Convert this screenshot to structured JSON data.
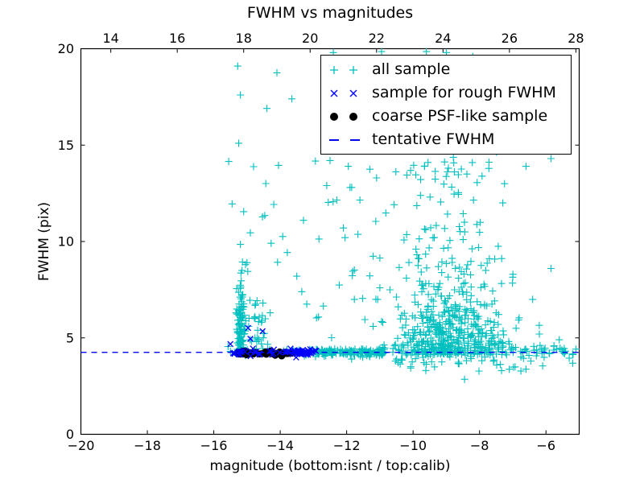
{
  "chart_data": {
    "type": "scatter",
    "title": "FWHM vs magnitudes",
    "xlabel": "magnitude (bottom:isnt / top:calib)",
    "ylabel": "FWHM (pix)",
    "xlim": [
      -20,
      -5
    ],
    "ylim": [
      0,
      20
    ],
    "grid": false,
    "legend_position": "upper right",
    "xticks": [
      -20,
      -18,
      -16,
      -14,
      -12,
      -10,
      -8,
      -6
    ],
    "xtick_labels": [
      "−20",
      "−18",
      "−16",
      "−14",
      "−12",
      "−10",
      "−8",
      "−6"
    ],
    "yticks": [
      0,
      5,
      10,
      15,
      20
    ],
    "ytick_labels": [
      "0",
      "5",
      "10",
      "15",
      "20"
    ],
    "top_axis": {
      "ticks": [
        14,
        16,
        18,
        20,
        22,
        24,
        26,
        28
      ],
      "tick_labels": [
        "14",
        "16",
        "18",
        "20",
        "22",
        "24",
        "26",
        "28"
      ],
      "offset_from_bottom": 33.1
    },
    "tentative_fwhm": 4.25,
    "seed": 7,
    "axis_color": "#000000",
    "series": [
      {
        "name": "all sample",
        "marker": "plus",
        "color": "#00bfbf",
        "points": [
          [
            -15.57,
            4.55
          ],
          [
            -15.5,
            4.3
          ],
          [
            -15.28,
            19.1
          ],
          [
            -15.2,
            17.6
          ],
          [
            -13.65,
            17.4
          ],
          [
            -14.4,
            16.9
          ],
          [
            -14.1,
            18.75
          ],
          [
            -15.25,
            15.1
          ],
          [
            -15.55,
            14.15
          ],
          [
            -14.05,
            13.95
          ],
          [
            -15.45,
            11.95
          ],
          [
            -15.1,
            11.55
          ],
          [
            -14.9,
            10.45
          ],
          [
            -15.2,
            9.85
          ],
          [
            -15.0,
            8.9
          ],
          [
            -15.15,
            8.5
          ],
          [
            -12.5,
            14.2
          ],
          [
            -11.95,
            13.9
          ],
          [
            -11.3,
            13.75
          ],
          [
            -11.1,
            13.3
          ],
          [
            -9.55,
            14.1
          ],
          [
            -12.6,
            12.9
          ],
          [
            -11.9,
            12.8
          ],
          [
            -12.3,
            12.15
          ],
          [
            -11.6,
            12.15
          ],
          [
            -13.3,
            11.1
          ],
          [
            -12.1,
            10.7
          ],
          [
            -12.05,
            10.2
          ],
          [
            -13.5,
            8.2
          ],
          [
            -13.35,
            7.4
          ],
          [
            -13.2,
            6.75
          ],
          [
            -12.7,
            6.65
          ],
          [
            -11.0,
            7.6
          ],
          [
            -10.2,
            8.1
          ],
          [
            -11.45,
            5.95
          ],
          [
            -10.95,
            5.85
          ],
          [
            -11.2,
            5.6
          ],
          [
            -11.85,
            3.9
          ],
          [
            -14.55,
            5.9
          ],
          [
            -14.95,
            5.6
          ],
          [
            -14.3,
            6.3
          ],
          [
            -5.85,
            14.3
          ],
          [
            -6.6,
            13.9
          ],
          [
            -7.25,
            13.0
          ],
          [
            -7.3,
            12.0
          ],
          [
            -5.85,
            8.6
          ],
          [
            -7.0,
            8.15
          ],
          [
            -6.4,
            7.0
          ],
          [
            -5.6,
            4.9
          ],
          [
            -5.3,
            3.95
          ],
          [
            -6.1,
            3.55
          ],
          [
            -8.45,
            2.85
          ],
          [
            -12.4,
            19.8
          ],
          [
            -10.95,
            19.85
          ],
          [
            -9.6,
            19.85
          ],
          [
            -9.0,
            19.8
          ],
          [
            -8.2,
            19.6
          ],
          [
            -11.7,
            19.3
          ],
          [
            -9.3,
            17.3
          ],
          [
            -8.9,
            16.9
          ],
          [
            -9.95,
            16.5
          ],
          [
            -8.4,
            16.2
          ],
          [
            -7.8,
            15.9
          ],
          [
            -10.3,
            15.4
          ],
          [
            -6.9,
            5.5
          ],
          [
            -6.2,
            5.2
          ],
          [
            -7.5,
            6.3
          ],
          [
            -5.45,
            4.45
          ]
        ],
        "clusters": [
          {
            "n": 100,
            "x": [
              "n",
              -15.18,
              0.07
            ],
            "y": [
              "h",
              4.35,
              1.7
            ],
            "clipy": [
              4.1,
              9.6
            ]
          },
          {
            "n": 28,
            "x": [
              "n",
              -14.72,
              0.15
            ],
            "y": [
              "h",
              4.4,
              1.1
            ],
            "clipx": [
              -15.1,
              -14.2
            ]
          },
          {
            "n": 45,
            "x": [
              "u",
              -15.35,
              -12.95
            ],
            "y": [
              "n",
              4.25,
              0.08
            ]
          },
          {
            "n": 150,
            "x": [
              "u",
              -12.95,
              -10.85
            ],
            "y": [
              "n",
              4.25,
              0.09
            ]
          },
          {
            "n": 430,
            "x": [
              "n",
              -8.9,
              0.85
            ],
            "y": [
              "h",
              4.1,
              2.1
            ],
            "clipx": [
              -11.2,
              -6.2
            ],
            "clipy": [
              3.9,
              13
            ]
          },
          {
            "n": 85,
            "x": [
              "n",
              -9.0,
              0.8
            ],
            "y": [
              "u",
              8.5,
              15.3
            ],
            "clipx": [
              -10.9,
              -7.0
            ]
          },
          {
            "n": 14,
            "x": [
              "n",
              -9.2,
              0.9
            ],
            "y": [
              "u",
              15.3,
              19.4
            ],
            "clipx": [
              -10.8,
              -7.4
            ]
          },
          {
            "n": 80,
            "x": [
              "n",
              -8.6,
              1.3
            ],
            "y": [
              "n",
              4.35,
              0.25
            ],
            "clipx": [
              -11.0,
              -5.15
            ]
          },
          {
            "n": 30,
            "x": [
              "u",
              -7.05,
              -5.05
            ],
            "y": [
              "n",
              4.3,
              0.16
            ]
          },
          {
            "n": 34,
            "x": [
              "u",
              -10.6,
              -5.3
            ],
            "y": [
              "u",
              3.25,
              4.05
            ]
          },
          {
            "n": 22,
            "x": [
              "u",
              -13.0,
              -10.9
            ],
            "y": [
              "u",
              5.0,
              14.5
            ]
          },
          {
            "n": 10,
            "x": [
              "u",
              -15.5,
              -13.3
            ],
            "y": [
              "u",
              8.2,
              14.8
            ]
          }
        ]
      },
      {
        "name": "sample for rough FWHM",
        "marker": "cross",
        "color": "#0000ff",
        "points": [
          [
            -15.5,
            4.68
          ],
          [
            -14.97,
            5.52
          ],
          [
            -14.53,
            5.35
          ],
          [
            -14.9,
            4.95
          ]
        ],
        "clusters": [
          {
            "n": 50,
            "x": [
              "u",
              -15.42,
              -13.0
            ],
            "y": [
              "n",
              4.25,
              0.07
            ]
          },
          {
            "n": 28,
            "x": [
              "u",
              -13.62,
              -12.92
            ],
            "y": [
              "n",
              4.25,
              0.09
            ]
          }
        ]
      },
      {
        "name": "coarse PSF-like sample",
        "marker": "dot",
        "color": "#000000",
        "points": [],
        "clusters": [
          {
            "n": 42,
            "x": [
              "u",
              -15.33,
              -13.62
            ],
            "y": [
              "n",
              4.2,
              0.045
            ]
          }
        ]
      },
      {
        "name": "tentative FWHM",
        "marker": "dash",
        "color": "#0000ff",
        "line_y": 4.25
      }
    ]
  }
}
